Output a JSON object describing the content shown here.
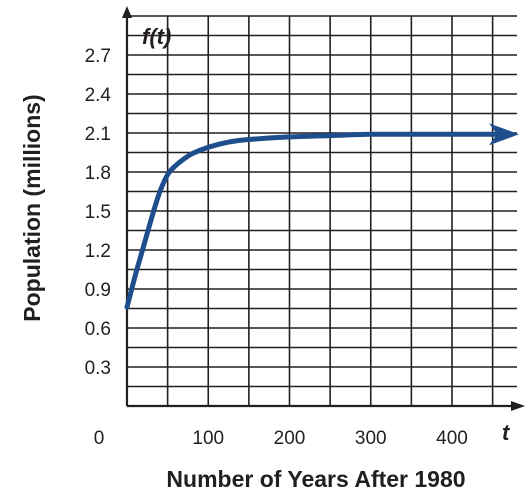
{
  "chart_data": {
    "type": "line",
    "xlabel": "Number of Years After 1980",
    "ylabel": "Population (millions)",
    "x_var": "t",
    "y_func": "f(t)",
    "xlim": [
      0,
      480
    ],
    "ylim": [
      0,
      3.0
    ],
    "x_grid_step": 50,
    "y_grid_step": 0.15,
    "grid": true,
    "x_ticks": [
      {
        "value": 0,
        "label": "0"
      },
      {
        "value": 100,
        "label": "100"
      },
      {
        "value": 200,
        "label": "200"
      },
      {
        "value": 300,
        "label": "300"
      },
      {
        "value": 400,
        "label": "400"
      }
    ],
    "y_ticks": [
      {
        "value": 0.3,
        "label": "0.3"
      },
      {
        "value": 0.6,
        "label": "0.6"
      },
      {
        "value": 0.9,
        "label": "0.9"
      },
      {
        "value": 1.2,
        "label": "1.2"
      },
      {
        "value": 1.5,
        "label": "1.5"
      },
      {
        "value": 1.8,
        "label": "1.8"
      },
      {
        "value": 2.1,
        "label": "2.1"
      },
      {
        "value": 2.4,
        "label": "2.4"
      },
      {
        "value": 2.7,
        "label": "2.7"
      }
    ],
    "series": [
      {
        "color": "#1f4e8c",
        "arrow_end": true,
        "x": [
          0,
          10,
          20,
          30,
          40,
          50,
          60,
          70,
          80,
          100,
          125,
          150,
          200,
          250,
          300,
          350,
          400,
          450,
          480
        ],
        "y": [
          0.76,
          1.0,
          1.22,
          1.44,
          1.64,
          1.78,
          1.85,
          1.9,
          1.94,
          1.99,
          2.03,
          2.05,
          2.07,
          2.08,
          2.09,
          2.09,
          2.09,
          2.09,
          2.09
        ]
      }
    ]
  }
}
